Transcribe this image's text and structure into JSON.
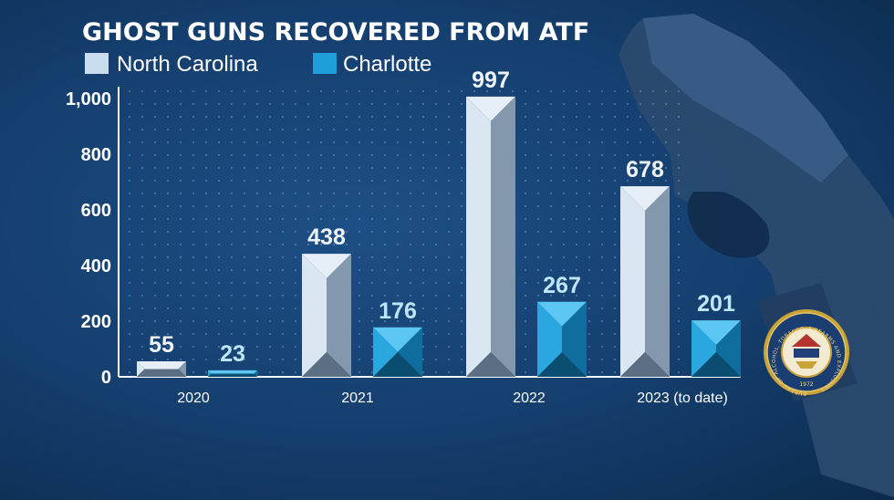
{
  "chart_data": {
    "type": "bar",
    "title": "GHOST GUNS RECOVERED FROM ATF",
    "categories": [
      "2020",
      "2021",
      "2022",
      "2023 (to date)"
    ],
    "series": [
      {
        "name": "North Carolina",
        "values": [
          55,
          438,
          997,
          678
        ],
        "labels": [
          "55",
          "438",
          "997",
          "678"
        ],
        "color": "#c9dcf0"
      },
      {
        "name": "Charlotte",
        "values": [
          23,
          176,
          267,
          201
        ],
        "labels": [
          "23",
          "176",
          "267",
          "201"
        ],
        "color": "#1f9fd9"
      }
    ],
    "ylim": [
      0,
      1000
    ],
    "yticks": [
      {
        "value": 0,
        "label": "0"
      },
      {
        "value": 200,
        "label": "200"
      },
      {
        "value": 400,
        "label": "400"
      },
      {
        "value": 600,
        "label": "600"
      },
      {
        "value": 800,
        "label": "800"
      },
      {
        "value": 1000,
        "label": "1,000"
      }
    ],
    "grid": true,
    "legend": "top-left"
  },
  "seal": {
    "description_icon": "atf-seal-icon",
    "ring_text": "BUREAU OF ALCOHOL, TOBACCO, FIREARMS AND EXPLOSIVES",
    "year": "1972"
  },
  "colors": {
    "background": "#143e6d",
    "nc": "#c9dcf0",
    "charlotte": "#1f9fd9",
    "gold": "#c9a23a"
  }
}
